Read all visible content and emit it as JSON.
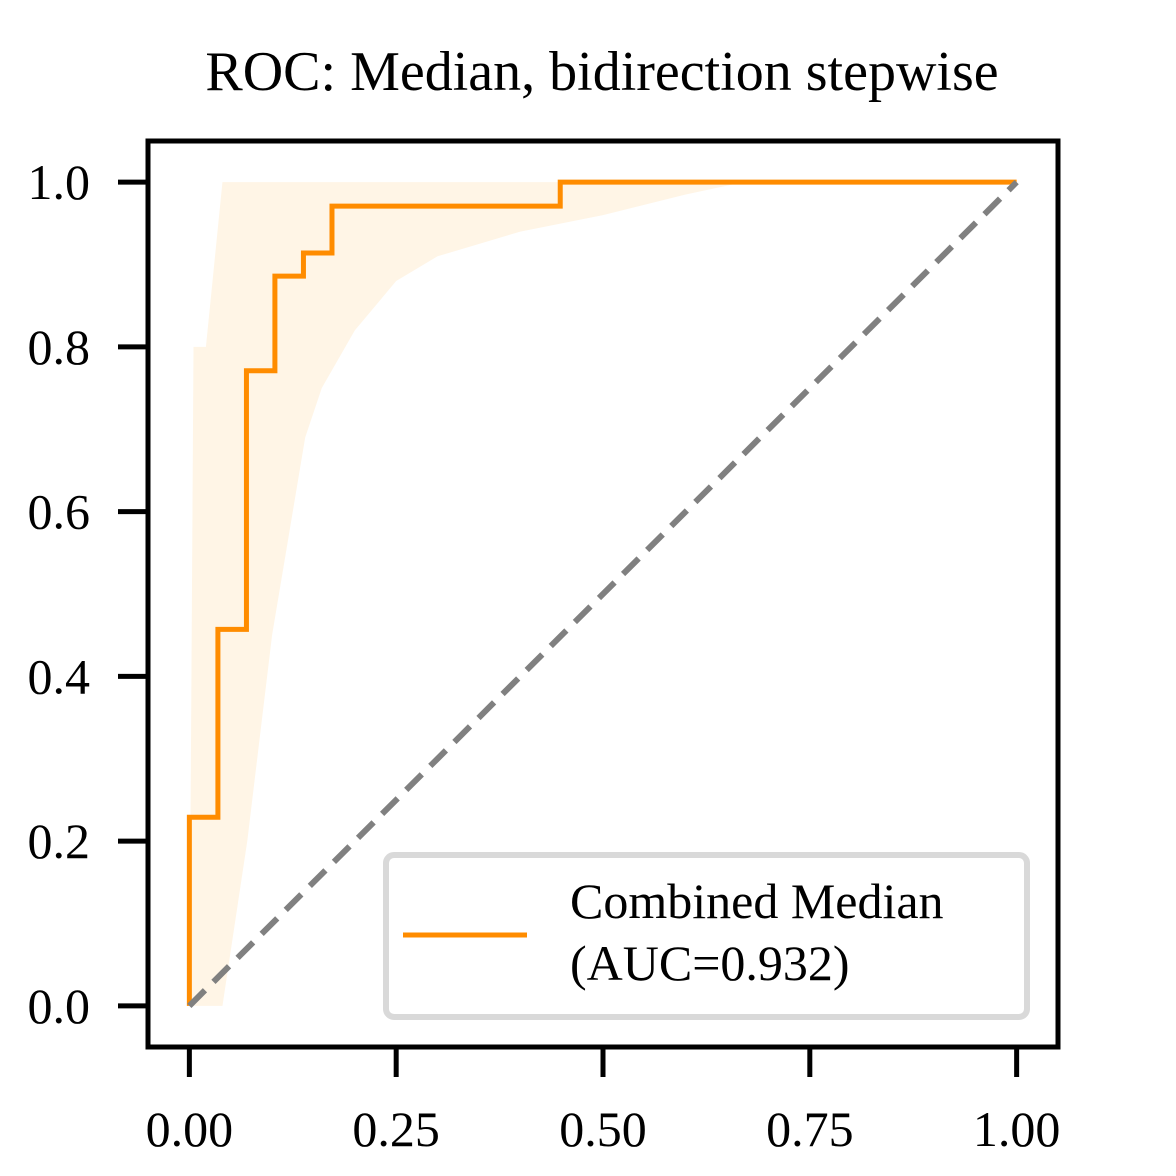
{
  "chart_data": {
    "type": "line",
    "title": "ROC: Median, bidirection stepwise",
    "xlabel": "",
    "ylabel": "",
    "xlim": [
      -0.05,
      1.05
    ],
    "ylim": [
      -0.05,
      1.05
    ],
    "x_ticks": [
      "0.00",
      "0.25",
      "0.50",
      "0.75",
      "1.00"
    ],
    "y_ticks": [
      "0.0",
      "0.2",
      "0.4",
      "0.6",
      "0.8",
      "1.0"
    ],
    "grid": false,
    "legend_position": "bottom-right",
    "legend": {
      "line1": "Combined Median",
      "line2": "(AUC=0.932)"
    },
    "series": [
      {
        "name": "Combined Median (AUC=0.932)",
        "color": "#ff8c00",
        "x": [
          0.0,
          0.0,
          0.0345,
          0.0345,
          0.069,
          0.069,
          0.1034,
          0.1034,
          0.1379,
          0.1379,
          0.1724,
          0.1724,
          0.4483,
          0.4483,
          1.0
        ],
        "y": [
          0.0,
          0.229,
          0.229,
          0.457,
          0.457,
          0.771,
          0.771,
          0.886,
          0.886,
          0.914,
          0.914,
          0.971,
          0.971,
          1.0,
          1.0
        ]
      },
      {
        "name": "",
        "color": "#808080",
        "style": "dashed",
        "x": [
          0,
          1
        ],
        "y": [
          0,
          1
        ]
      }
    ],
    "band": {
      "color": "#fff5e6",
      "upper": [
        [
          0,
          0
        ],
        [
          0.005,
          0.8
        ],
        [
          0.02,
          0.8
        ],
        [
          0.04,
          1.0
        ],
        [
          1.0,
          1.0
        ]
      ],
      "lower": [
        [
          0,
          0
        ],
        [
          0.04,
          0.0
        ],
        [
          0.07,
          0.2
        ],
        [
          0.1,
          0.45
        ],
        [
          0.14,
          0.69
        ],
        [
          0.16,
          0.75
        ],
        [
          0.2,
          0.82
        ],
        [
          0.25,
          0.88
        ],
        [
          0.3,
          0.91
        ],
        [
          0.4,
          0.94
        ],
        [
          0.5,
          0.96
        ],
        [
          0.6,
          0.985
        ],
        [
          0.67,
          1.0
        ],
        [
          1.0,
          1.0
        ]
      ]
    }
  }
}
